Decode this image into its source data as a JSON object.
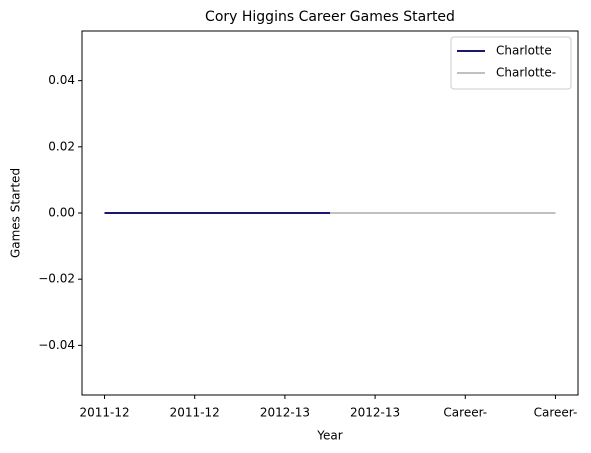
{
  "chart_data": {
    "type": "line",
    "title": "Cory Higgins Career Games Started",
    "xlabel": "Year",
    "ylabel": "Games Started",
    "xlim": [
      -0.25,
      5.25
    ],
    "xticks": [
      {
        "value": 0,
        "label": "2011-12"
      },
      {
        "value": 1,
        "label": "2011-12"
      },
      {
        "value": 2,
        "label": "2012-13"
      },
      {
        "value": 3,
        "label": "2012-13"
      },
      {
        "value": 4,
        "label": "Career-"
      },
      {
        "value": 5,
        "label": "Career-"
      }
    ],
    "ylim": [
      -0.055,
      0.055
    ],
    "yticks": [
      {
        "value": -0.04,
        "label": "−0.04"
      },
      {
        "value": -0.02,
        "label": "−0.02"
      },
      {
        "value": 0,
        "label": "0.00"
      },
      {
        "value": 0.02,
        "label": "0.02"
      },
      {
        "value": 0.04,
        "label": "0.04"
      }
    ],
    "legend": "upper right",
    "series": [
      {
        "name": "Charlotte",
        "color": "#191970",
        "x": [
          0,
          2.5
        ],
        "values": [
          0,
          0
        ]
      },
      {
        "name": "Charlotte-",
        "color": "#c0c0c0",
        "x": [
          2.5,
          5
        ],
        "values": [
          0,
          0
        ]
      }
    ]
  }
}
